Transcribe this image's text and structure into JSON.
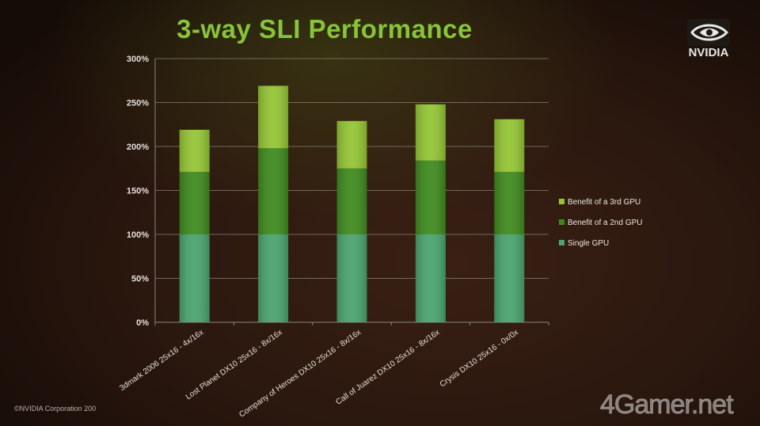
{
  "slide": {
    "title": "3-way SLI Performance",
    "logo_text": "NVIDIA",
    "logo_icon": "nvidia-eye-icon",
    "copyright": "©NVIDIA Corporation 200",
    "watermark": "4Gamer.net"
  },
  "colors": {
    "title": "#86c43a",
    "single_gpu": "#4aa46e",
    "second_gpu": "#3f8a1e",
    "third_gpu": "#94c534",
    "axis": "#8c8680"
  },
  "chart_data": {
    "type": "bar",
    "stacked": true,
    "title": "3-way SLI Performance",
    "categories": [
      "3dmark 2006 25x16 - 4x/16x",
      "Lost Planet DX10 25x16 - 8x/16x",
      "Company of Heroes DX10 25x16 - 8x/16x",
      "Call of Juarez DX10 25x16 - 8x/16x",
      "Crysis DX10 25x16 - 0x/0x"
    ],
    "series": [
      {
        "name": "Single GPU",
        "values": [
          100,
          100,
          100,
          100,
          100
        ],
        "color": "#4aa46e"
      },
      {
        "name": "Benefit of a 2nd GPU",
        "values": [
          71,
          98,
          75,
          84,
          71
        ],
        "color": "#3f8a1e"
      },
      {
        "name": "Benefit of a 3rd GPU",
        "values": [
          48,
          71,
          54,
          64,
          60
        ],
        "color": "#94c534"
      }
    ],
    "yticks": [
      "0%",
      "50%",
      "100%",
      "150%",
      "200%",
      "250%",
      "300%"
    ],
    "ylim": [
      0,
      300
    ],
    "grid": true,
    "legend_placement": "right",
    "legend_order": [
      "Benefit of a 3rd GPU",
      "Benefit of a 2nd GPU",
      "Single GPU"
    ]
  }
}
